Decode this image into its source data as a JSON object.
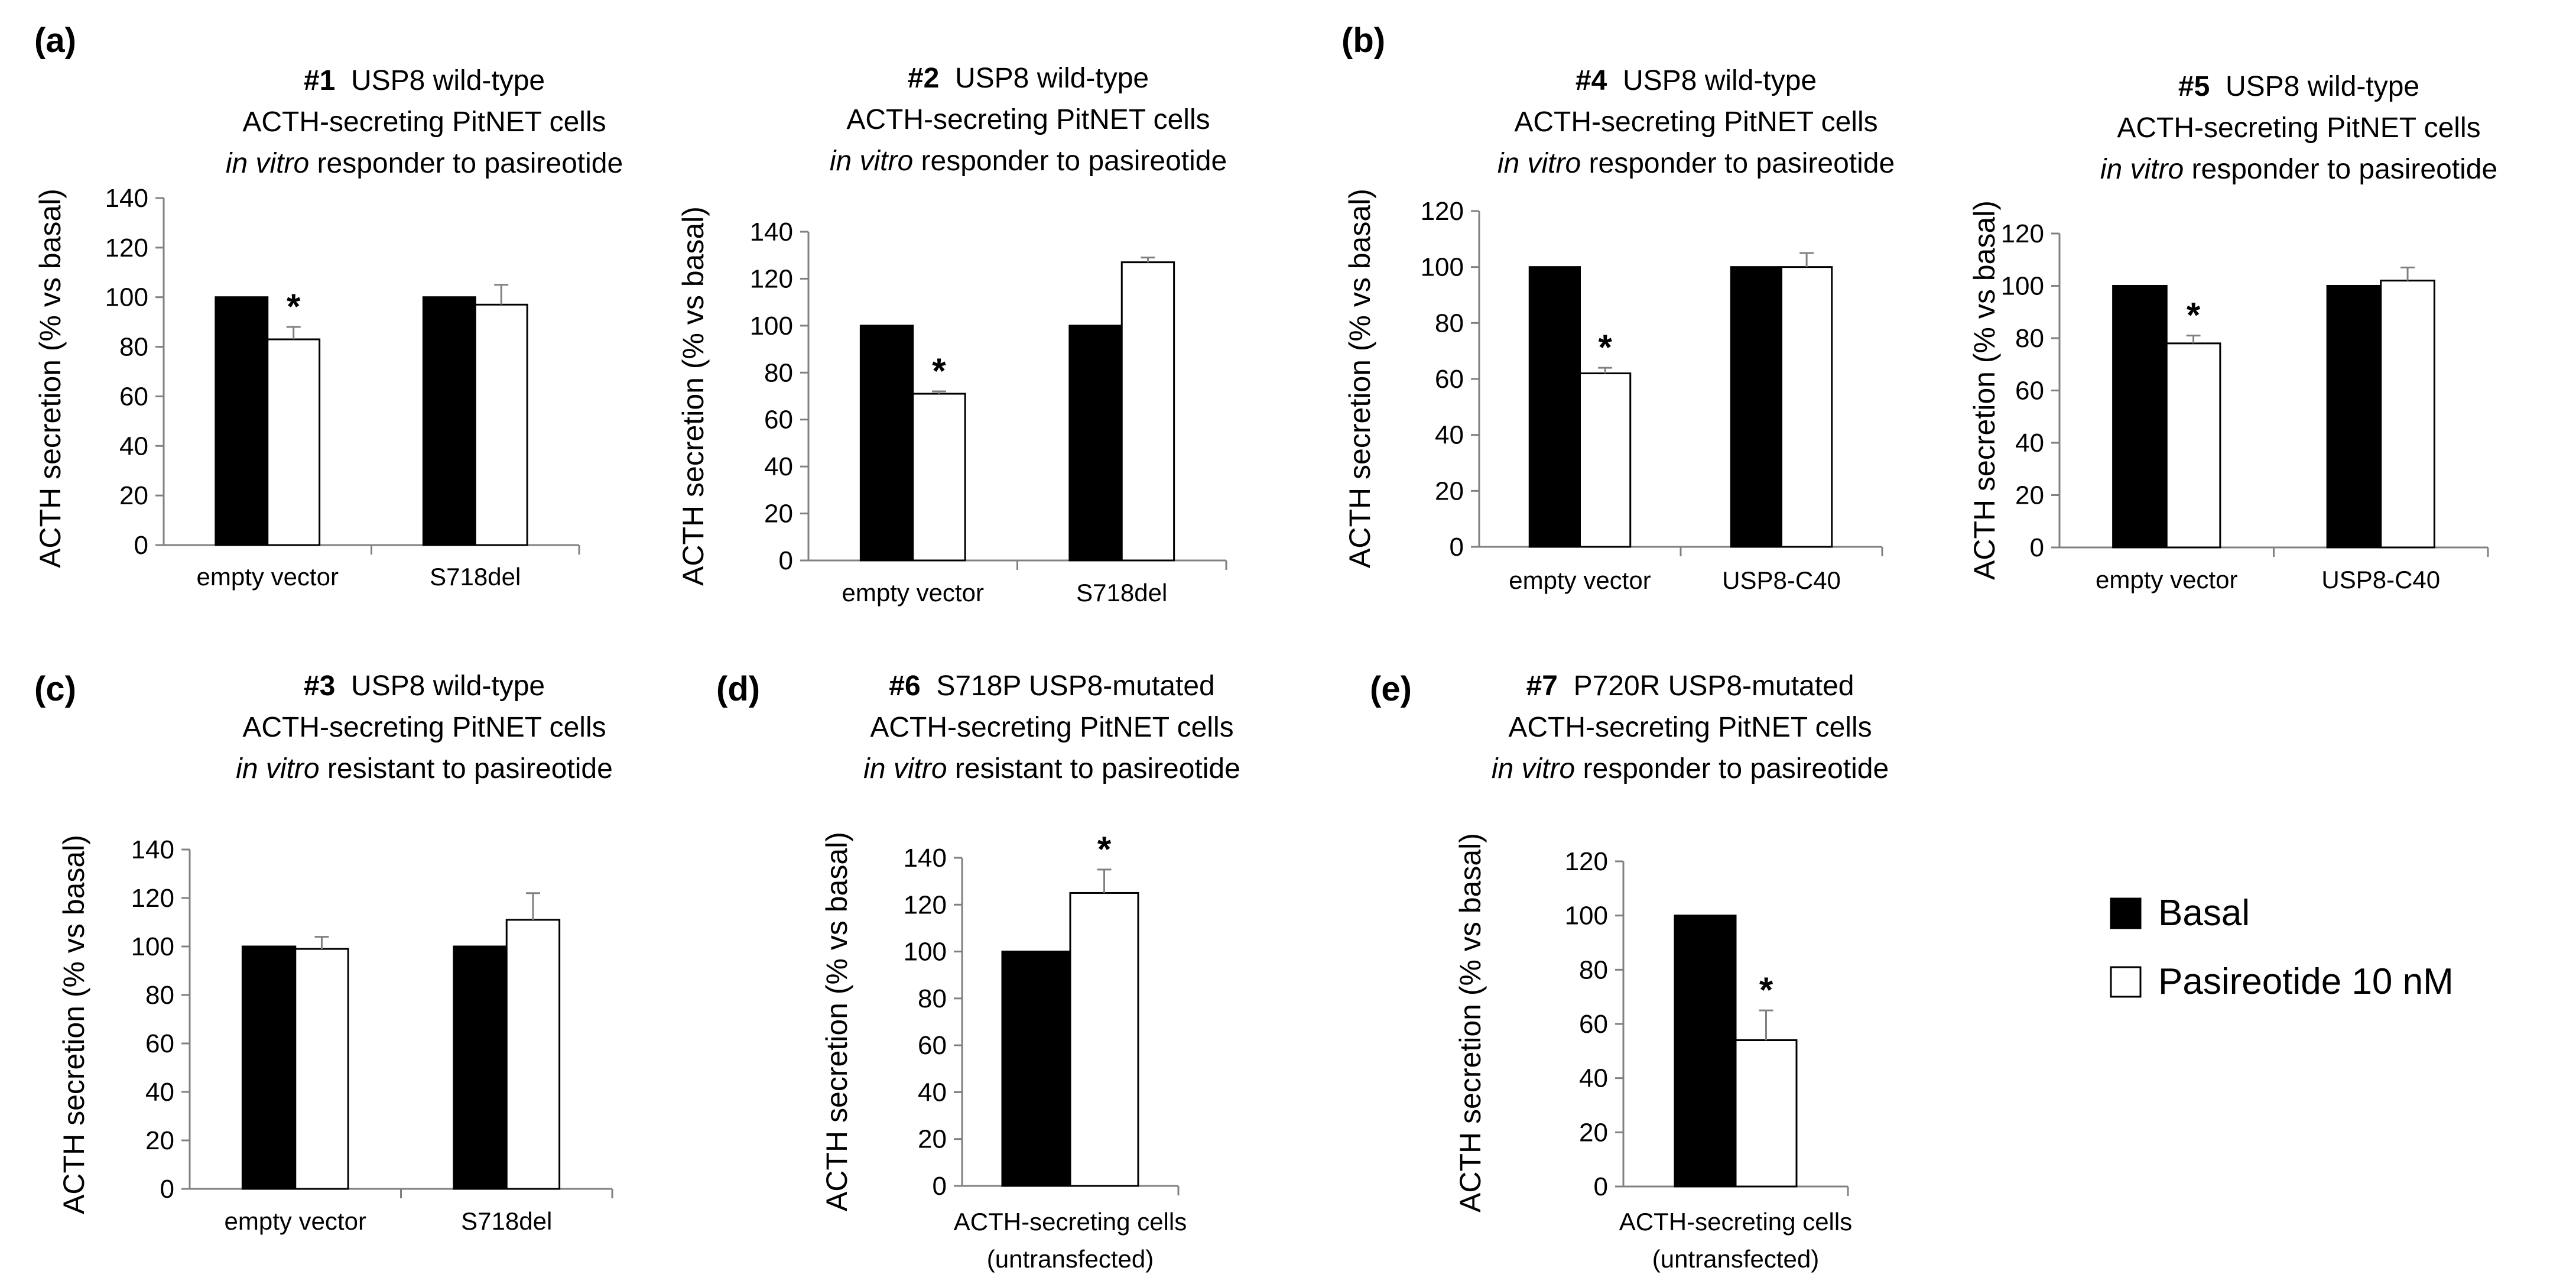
{
  "figure": {
    "value_axis_label": "ACTH secretion (% vs basal)",
    "legend": {
      "basal": {
        "label": "Basal",
        "color": "#000000"
      },
      "pasireotide": {
        "label": "Pasireotide 10 nM",
        "color": "#ffffff"
      }
    }
  },
  "chart_data": [
    {
      "id": "c1",
      "type": "bar",
      "title_lines": [
        "#1  USP8 wild-type",
        "ACTH-secreting PitNET cells",
        "in vitro responder to pasireotide"
      ],
      "ylabel": "ACTH secretion (% vs basal)",
      "ylim": [
        0,
        140
      ],
      "yticks": [
        0,
        20,
        40,
        60,
        80,
        100,
        120,
        140
      ],
      "categories": [
        "empty vector",
        "S718del"
      ],
      "series": [
        {
          "name": "Basal",
          "values": [
            100,
            100
          ],
          "errors": [
            0,
            0
          ]
        },
        {
          "name": "Pasireotide 10 nM",
          "values": [
            83,
            97
          ],
          "errors": [
            5,
            8
          ]
        }
      ],
      "significance": [
        {
          "series": 1,
          "index": 0,
          "label": "*"
        }
      ]
    },
    {
      "id": "c2",
      "type": "bar",
      "title_lines": [
        "#2  USP8 wild-type",
        "ACTH-secreting PitNET cells",
        "in vitro responder to pasireotide"
      ],
      "ylabel": "ACTH secretion (% vs basal)",
      "ylim": [
        0,
        140
      ],
      "yticks": [
        0,
        20,
        40,
        60,
        80,
        100,
        120,
        140
      ],
      "categories": [
        "empty vector",
        "S718del"
      ],
      "series": [
        {
          "name": "Basal",
          "values": [
            100,
            100
          ],
          "errors": [
            0,
            0
          ]
        },
        {
          "name": "Pasireotide 10 nM",
          "values": [
            71,
            127
          ],
          "errors": [
            1,
            2
          ]
        }
      ],
      "significance": [
        {
          "series": 1,
          "index": 0,
          "label": "*"
        }
      ]
    },
    {
      "id": "c4",
      "type": "bar",
      "title_lines": [
        "#4  USP8 wild-type",
        "ACTH-secreting PitNET cells",
        "in vitro responder to pasireotide"
      ],
      "ylabel": "ACTH secretion (% vs basal)",
      "ylim": [
        0,
        120
      ],
      "yticks": [
        0,
        20,
        40,
        60,
        80,
        100,
        120
      ],
      "categories": [
        "empty vector",
        "USP8-C40"
      ],
      "series": [
        {
          "name": "Basal",
          "values": [
            100,
            100
          ],
          "errors": [
            0,
            0
          ]
        },
        {
          "name": "Pasireotide 10 nM",
          "values": [
            62,
            100
          ],
          "errors": [
            2,
            5
          ]
        }
      ],
      "significance": [
        {
          "series": 1,
          "index": 0,
          "label": "*"
        }
      ]
    },
    {
      "id": "c5",
      "type": "bar",
      "title_lines": [
        "#5  USP8 wild-type",
        "ACTH-secreting PitNET cells",
        "in vitro responder to pasireotide"
      ],
      "ylabel": "ACTH secretion (% vs basal)",
      "ylim": [
        0,
        120
      ],
      "yticks": [
        0,
        20,
        40,
        60,
        80,
        100,
        120
      ],
      "categories": [
        "empty vector",
        "USP8-C40"
      ],
      "series": [
        {
          "name": "Basal",
          "values": [
            100,
            100
          ],
          "errors": [
            0,
            0
          ]
        },
        {
          "name": "Pasireotide 10 nM",
          "values": [
            78,
            102
          ],
          "errors": [
            3,
            5
          ]
        }
      ],
      "significance": [
        {
          "series": 1,
          "index": 0,
          "label": "*"
        }
      ]
    },
    {
      "id": "c3",
      "type": "bar",
      "title_lines": [
        "#3  USP8 wild-type",
        "ACTH-secreting PitNET cells",
        "in vitro resistant to pasireotide"
      ],
      "ylabel": "ACTH secretion (% vs basal)",
      "ylim": [
        0,
        140
      ],
      "yticks": [
        0,
        20,
        40,
        60,
        80,
        100,
        120,
        140
      ],
      "categories": [
        "empty vector",
        "S718del"
      ],
      "series": [
        {
          "name": "Basal",
          "values": [
            100,
            100
          ],
          "errors": [
            0,
            0
          ]
        },
        {
          "name": "Pasireotide 10 nM",
          "values": [
            99,
            111
          ],
          "errors": [
            5,
            11
          ]
        }
      ],
      "significance": []
    },
    {
      "id": "c6",
      "type": "bar",
      "title_lines": [
        "#6  S718P USP8-mutated",
        "ACTH-secreting PitNET cells",
        "in vitro resistant to pasireotide"
      ],
      "ylabel": "ACTH secretion (% vs basal)",
      "ylim": [
        0,
        140
      ],
      "yticks": [
        0,
        20,
        40,
        60,
        80,
        100,
        120,
        140
      ],
      "categories": [
        "ACTH-secreting cells (untransfected)"
      ],
      "category_lines": [
        [
          "ACTH-secreting cells",
          "(untransfected)"
        ]
      ],
      "series": [
        {
          "name": "Basal",
          "values": [
            100
          ],
          "errors": [
            0
          ]
        },
        {
          "name": "Pasireotide 10 nM",
          "values": [
            125
          ],
          "errors": [
            10
          ]
        }
      ],
      "significance": [
        {
          "series": 1,
          "index": 0,
          "label": "*"
        }
      ]
    },
    {
      "id": "c7",
      "type": "bar",
      "title_lines": [
        "#7  P720R USP8-mutated",
        "ACTH-secreting PitNET cells",
        "in vitro responder to pasireotide"
      ],
      "ylabel": "ACTH secretion (% vs basal)",
      "ylim": [
        0,
        120
      ],
      "yticks": [
        0,
        20,
        40,
        60,
        80,
        100,
        120
      ],
      "categories": [
        "ACTH-secreting cells (untransfected)"
      ],
      "category_lines": [
        [
          "ACTH-secreting cells",
          "(untransfected)"
        ]
      ],
      "series": [
        {
          "name": "Basal",
          "values": [
            100
          ],
          "errors": [
            0
          ]
        },
        {
          "name": "Pasireotide 10 nM",
          "values": [
            54
          ],
          "errors": [
            11
          ]
        }
      ],
      "significance": [
        {
          "series": 1,
          "index": 0,
          "label": "*"
        }
      ]
    }
  ],
  "panel_labels": [
    "(a)",
    "(b)",
    "(c)",
    "(d)",
    "(e)"
  ]
}
